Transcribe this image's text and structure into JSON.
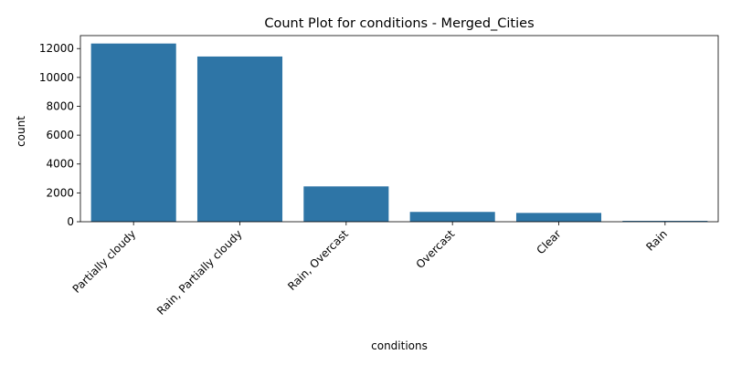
{
  "chart_data": {
    "type": "bar",
    "title": "Count Plot for conditions - Merged_Cities",
    "xlabel": "conditions",
    "ylabel": "count",
    "categories": [
      "Partially cloudy",
      "Rain, Partially cloudy",
      "Rain, Overcast",
      "Overcast",
      "Clear",
      "Rain"
    ],
    "values": [
      12350,
      11450,
      2450,
      680,
      610,
      60
    ],
    "ylim": [
      0,
      12900
    ],
    "yticks": [
      0,
      2000,
      4000,
      6000,
      8000,
      10000,
      12000
    ],
    "ytick_labels": [
      "0",
      "2000",
      "4000",
      "6000",
      "8000",
      "10000",
      "12000"
    ],
    "bar_color": "#2e75a6",
    "grid": false,
    "legend": "none"
  }
}
